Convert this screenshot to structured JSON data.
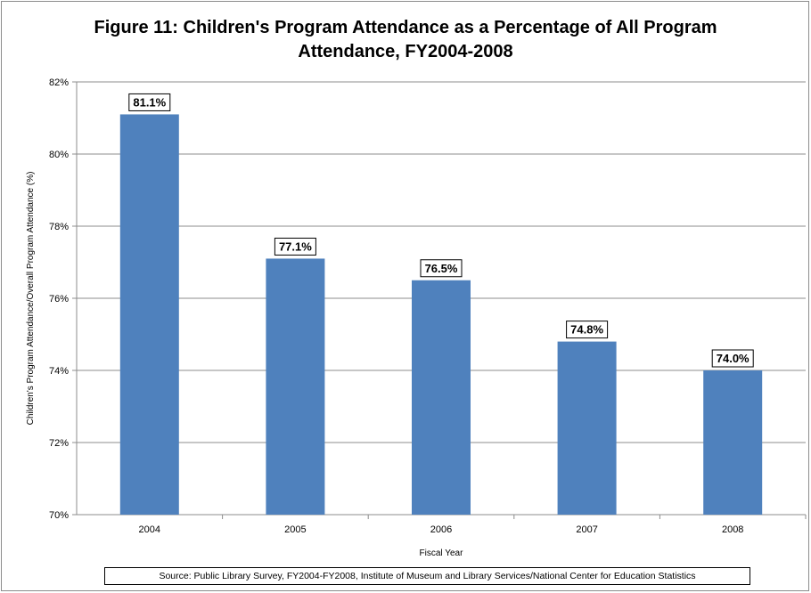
{
  "chart_data": {
    "type": "bar",
    "title": "Figure 11: Children's Program Attendance as a Percentage of All Program Attendance, FY2004-2008",
    "title_lines": [
      "Figure 11: Children's Program Attendance as a Percentage of All Program",
      "Attendance, FY2004-2008"
    ],
    "categories": [
      "2004",
      "2005",
      "2006",
      "2007",
      "2008"
    ],
    "values": [
      81.1,
      77.1,
      76.5,
      74.8,
      74.0
    ],
    "data_labels": [
      "81.1%",
      "77.1%",
      "76.5%",
      "74.8%",
      "74.0%"
    ],
    "xlabel": "Fiscal Year",
    "ylabel": "Children's Program Attendance/Overall Program Attendance (%)",
    "ylim": [
      70,
      82
    ],
    "yticks": [
      70,
      72,
      74,
      76,
      78,
      80,
      82
    ],
    "ytick_labels": [
      "70%",
      "72%",
      "74%",
      "76%",
      "78%",
      "80%",
      "82%"
    ],
    "grid": true,
    "legend": "none",
    "bar_color": "#4f81bd",
    "source": "Source: Public Library Survey, FY2004-FY2008, Institute of Museum and Library Services/National Center for Education Statistics"
  }
}
